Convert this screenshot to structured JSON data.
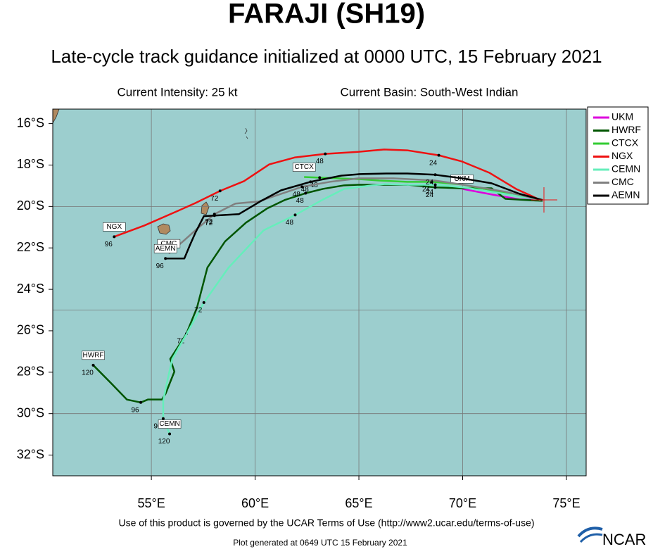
{
  "chart_data": {
    "type": "line",
    "title": "FARAJI (SH19)",
    "subtitle": "Late-cycle track guidance initialized at 0000 UTC, 15 February 2021",
    "intensity": "Current Intensity: 25 kt",
    "basin": "Current Basin: South-West Indian",
    "footer": "Use of this product is governed by the UCAR Terms of Use (http://www2.ucar.edu/terms-of-use)",
    "generated": "Plot generated at 0649 UTC   15 February 2021",
    "logo": "NCAR",
    "xlim": [
      50.25,
      75.95
    ],
    "ylim": [
      -33.0,
      -15.3
    ],
    "xticks": [
      {
        "value": 55,
        "label": "55°E"
      },
      {
        "value": 60,
        "label": "60°E"
      },
      {
        "value": 65,
        "label": "65°E"
      },
      {
        "value": 70,
        "label": "70°E"
      },
      {
        "value": 75,
        "label": "75°E"
      }
    ],
    "yticks": [
      {
        "value": -16,
        "label": "16°S"
      },
      {
        "value": -18,
        "label": "18°S"
      },
      {
        "value": -20,
        "label": "20°S"
      },
      {
        "value": -22,
        "label": "22°S"
      },
      {
        "value": -24,
        "label": "24°S"
      },
      {
        "value": -26,
        "label": "26°S"
      },
      {
        "value": -28,
        "label": "28°S"
      },
      {
        "value": -30,
        "label": "30°S"
      },
      {
        "value": -32,
        "label": "32°S"
      }
    ],
    "ygrid": [
      -20,
      -25,
      -30
    ],
    "grid": true,
    "series": [
      {
        "name": "UKM",
        "color": "#dd00dd",
        "x": [
          73.85,
          72.74,
          71.39,
          69.97
        ],
        "values": [
          -19.69,
          -19.66,
          -19.42,
          -19.15
        ],
        "point_labels": [
          null,
          null,
          null,
          null
        ]
      },
      {
        "name": "HWRF",
        "color": "#005500",
        "x": [
          73.85,
          72.06,
          71.39,
          69.97,
          68.68,
          67.33,
          66.15,
          65.0,
          64.29,
          63.28,
          62.43,
          61.42,
          60.57,
          59.56,
          58.55,
          57.7,
          57.2,
          56.69,
          56.35,
          55.91,
          56.11,
          55.68,
          55.51,
          54.83,
          54.49,
          53.82,
          53.07,
          52.2
        ],
        "values": [
          -19.73,
          -19.63,
          -19.12,
          -19.12,
          -19.08,
          -18.95,
          -18.95,
          -18.95,
          -18.98,
          -19.15,
          -19.36,
          -19.69,
          -20.1,
          -20.78,
          -21.69,
          -22.95,
          -24.88,
          -26.14,
          -26.68,
          -27.36,
          -27.97,
          -29.05,
          -29.32,
          -29.32,
          -29.46,
          -29.32,
          -28.54,
          -27.66
        ],
        "point_labels": [
          null,
          null,
          null,
          null,
          "24",
          null,
          null,
          null,
          null,
          null,
          "48",
          null,
          null,
          null,
          null,
          null,
          null,
          "72",
          null,
          null,
          null,
          null,
          null,
          null,
          "96",
          null,
          null,
          "120"
        ]
      },
      {
        "name": "CTCX",
        "color": "#33cc33",
        "x": [
          73.85,
          71.39,
          70.03,
          68.51,
          67.33,
          65.98,
          65.0,
          63.95,
          63.11,
          62.36
        ],
        "values": [
          -19.69,
          -19.22,
          -18.95,
          -18.81,
          -18.81,
          -18.75,
          -18.68,
          -18.64,
          -18.61,
          -18.58
        ],
        "point_labels": [
          null,
          null,
          null,
          "24",
          null,
          null,
          null,
          null,
          "48",
          null
        ]
      },
      {
        "name": "NGX",
        "color": "#ee1111",
        "x": [
          73.75,
          72.57,
          71.28,
          69.97,
          68.85,
          67.33,
          66.22,
          65.0,
          63.38,
          61.93,
          60.68,
          59.46,
          58.31,
          57.13,
          56.15,
          54.66,
          53.21
        ],
        "values": [
          -19.69,
          -19.15,
          -18.37,
          -17.83,
          -17.53,
          -17.29,
          -17.25,
          -17.36,
          -17.46,
          -17.63,
          -17.97,
          -18.78,
          -19.25,
          -19.83,
          -20.27,
          -20.92,
          -21.46
        ],
        "point_labels": [
          null,
          null,
          null,
          null,
          "24",
          null,
          null,
          null,
          "48",
          null,
          null,
          null,
          "72",
          null,
          null,
          null,
          "96"
        ]
      },
      {
        "name": "CEMN",
        "color": "#66eebb",
        "x": [
          73.85,
          71.39,
          70.03,
          68.68,
          67.33,
          66.25,
          65.64,
          64.29,
          63.28,
          61.93,
          60.41,
          58.72,
          57.53,
          56.69,
          56.01,
          55.78,
          55.57,
          55.57,
          55.88
        ],
        "values": [
          -19.69,
          -19.29,
          -19.08,
          -18.95,
          -18.95,
          -18.92,
          -18.98,
          -19.15,
          -19.66,
          -20.41,
          -21.15,
          -22.95,
          -24.64,
          -26.17,
          -27.36,
          -28.37,
          -29.39,
          -30.24,
          -30.98
        ],
        "point_labels": [
          null,
          null,
          null,
          "24",
          null,
          null,
          null,
          null,
          null,
          "48",
          null,
          null,
          "72",
          null,
          null,
          null,
          null,
          "96",
          "120"
        ]
      },
      {
        "name": "CMC",
        "color": "#808080",
        "x": [
          73.85,
          72.06,
          70.03,
          68.68,
          66.66,
          65.0,
          63.61,
          62.26,
          61.25,
          60.17,
          59.05,
          58.04,
          57.2,
          56.52,
          55.84
        ],
        "values": [
          -19.69,
          -19.29,
          -18.95,
          -18.75,
          -18.64,
          -18.64,
          -18.81,
          -19.05,
          -19.39,
          -19.76,
          -19.86,
          -20.37,
          -21.08,
          -21.69,
          -22.27
        ],
        "point_labels": [
          null,
          null,
          null,
          null,
          null,
          null,
          null,
          "48",
          null,
          null,
          null,
          "72",
          null,
          null,
          null
        ]
      },
      {
        "name": "AEMN",
        "color": "#000000",
        "x": [
          73.85,
          72.74,
          71.39,
          69.97,
          68.68,
          67.33,
          66.32,
          65.03,
          64.16,
          62.67,
          61.25,
          60.24,
          59.22,
          58.04,
          57.53,
          57.13,
          56.86,
          56.59,
          55.68
        ],
        "values": [
          -19.69,
          -19.39,
          -18.88,
          -18.64,
          -18.47,
          -18.41,
          -18.41,
          -18.44,
          -18.51,
          -18.81,
          -19.22,
          -19.76,
          -20.37,
          -20.44,
          -20.47,
          -21.25,
          -21.86,
          -22.51,
          -22.51
        ],
        "point_labels": [
          null,
          null,
          null,
          null,
          "24",
          null,
          null,
          null,
          null,
          "48",
          null,
          null,
          null,
          "72",
          null,
          null,
          null,
          null,
          "96"
        ]
      }
    ]
  }
}
